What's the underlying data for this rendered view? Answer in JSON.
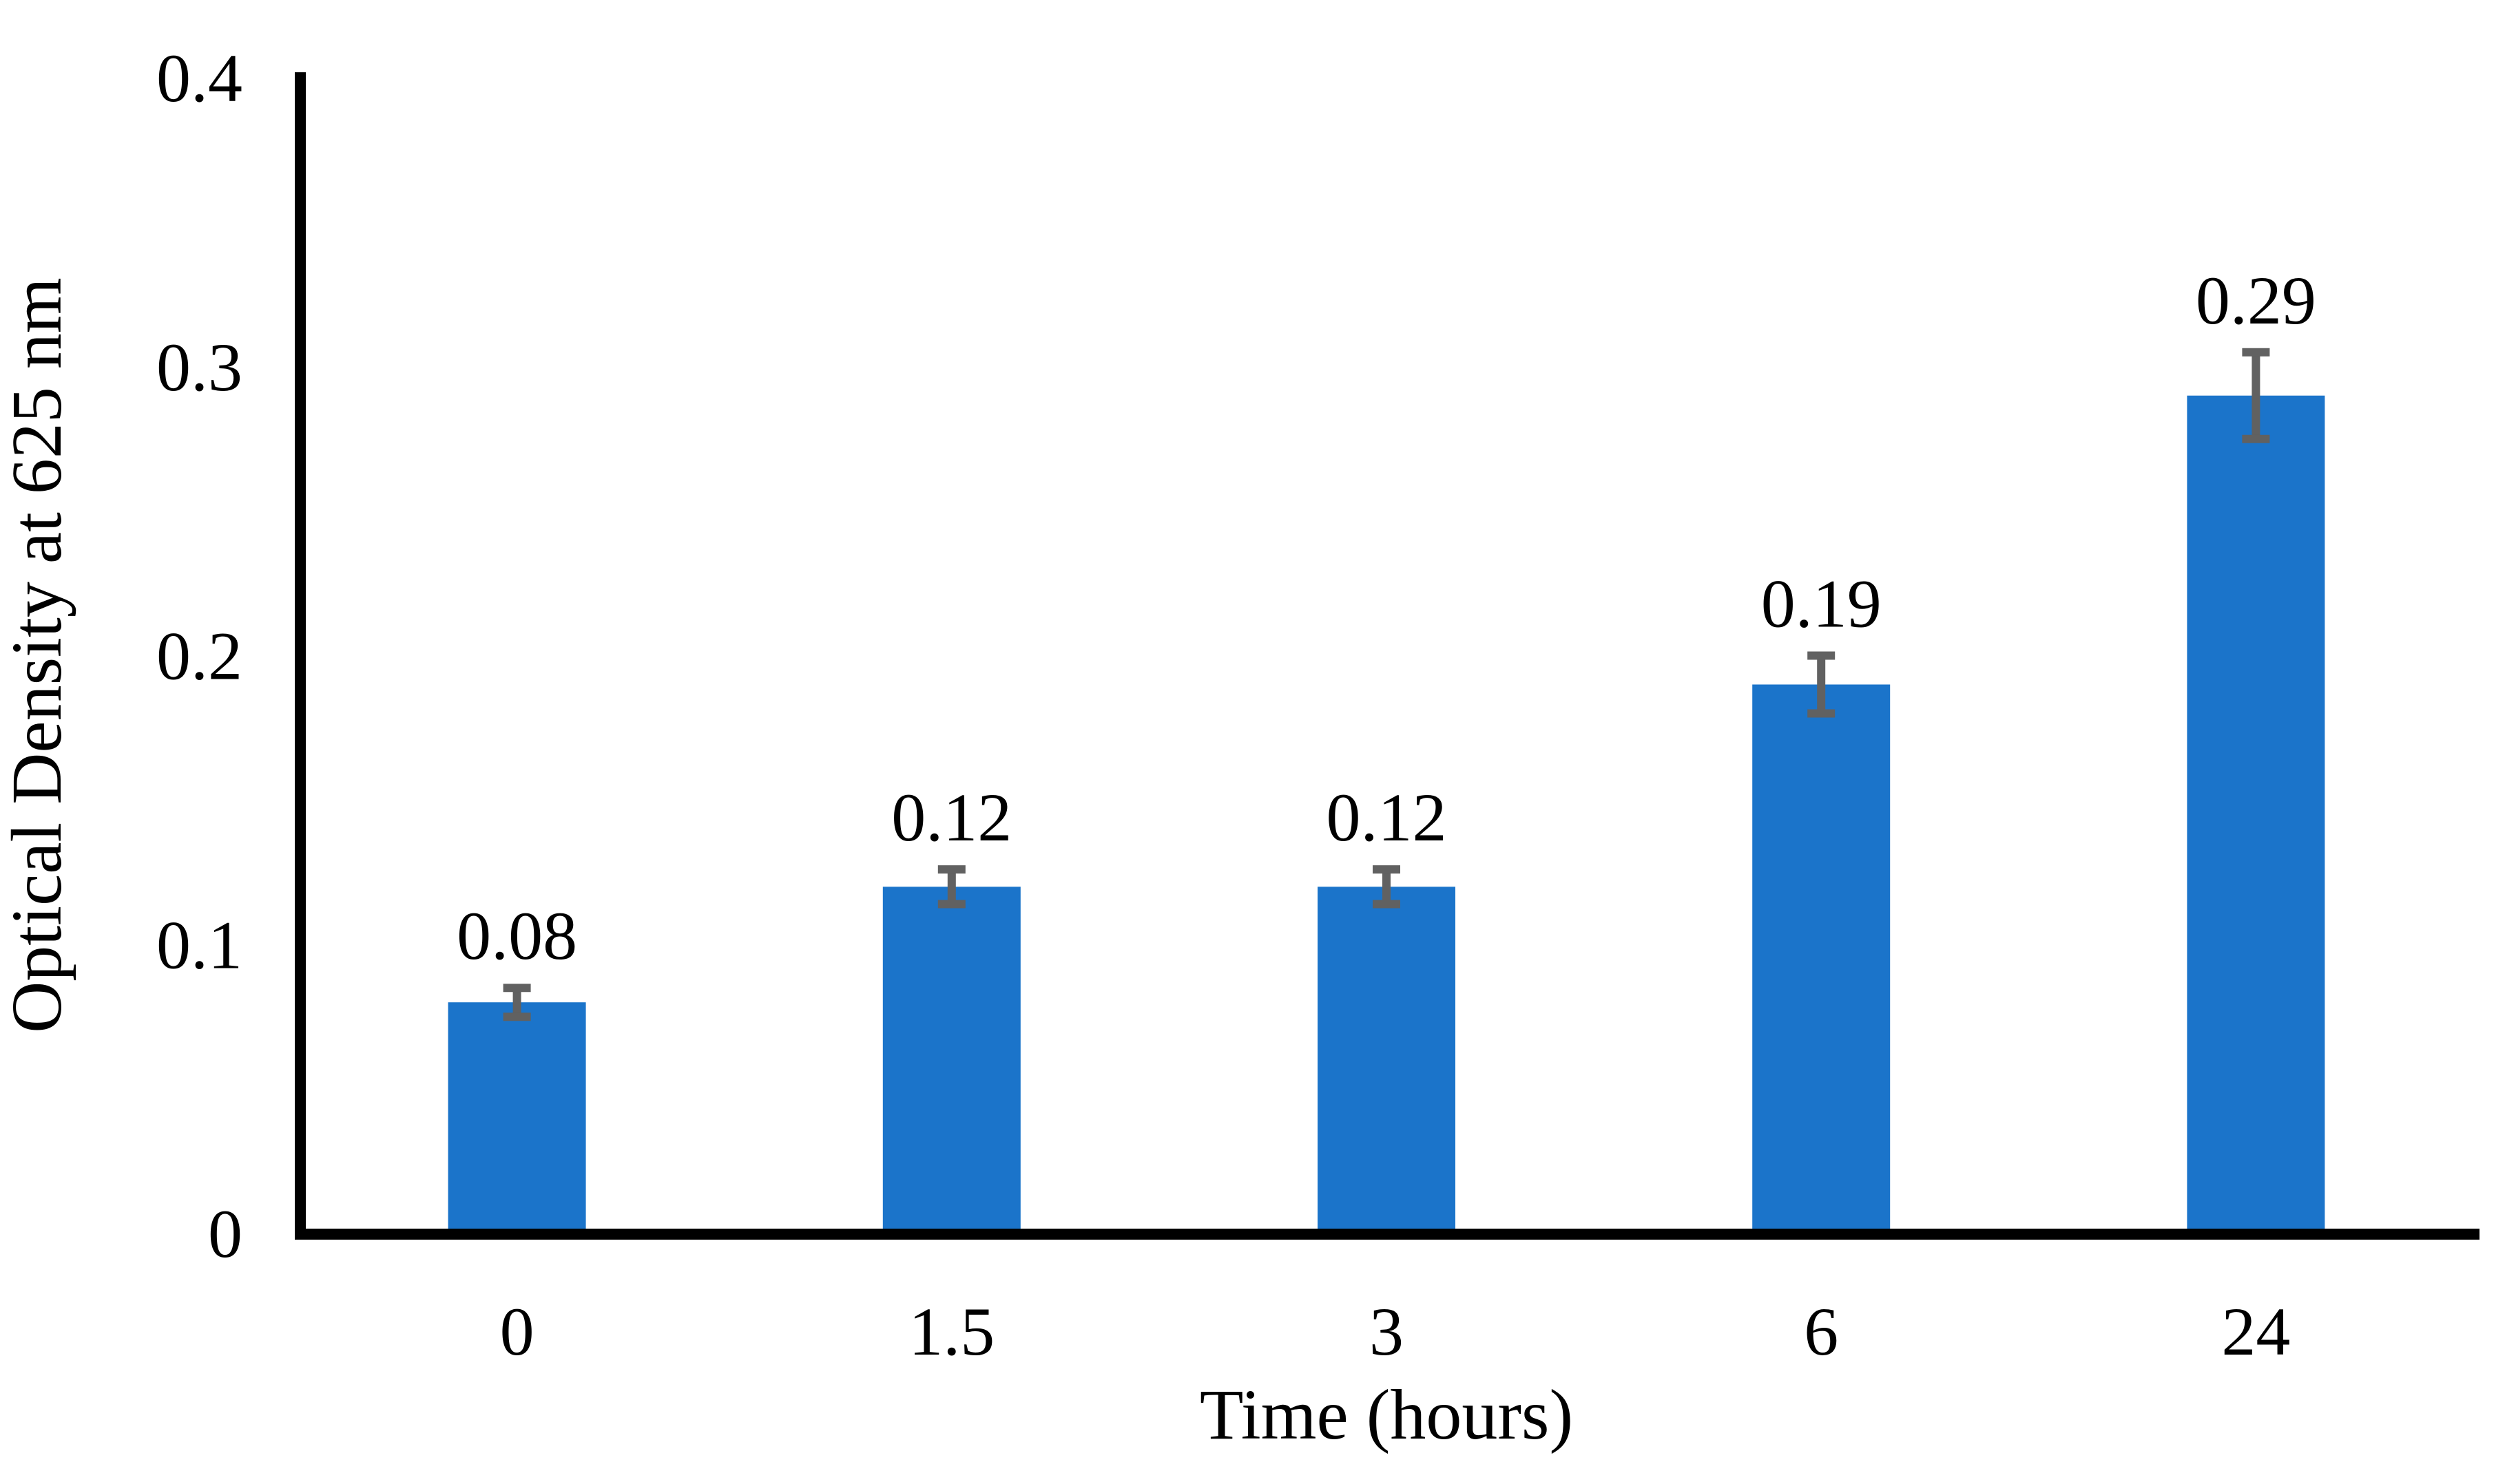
{
  "figure": {
    "background": "#FFFFFF"
  },
  "chart_data": {
    "type": "bar",
    "title": "",
    "categories": [
      "0",
      "1.5",
      "3",
      "6",
      "24"
    ],
    "values": [
      0.08,
      0.12,
      0.12,
      0.19,
      0.29
    ],
    "value_labels": [
      "0.08",
      "0.12",
      "0.12",
      "0.19",
      "0.29"
    ],
    "error_bars": [
      0.005,
      0.006,
      0.006,
      0.01,
      0.015
    ],
    "xlabel": "Time (hours)",
    "ylabel": "Optical Density at 625 nm",
    "ylim": [
      0,
      0.4
    ],
    "yticks": [
      0,
      0.1,
      0.2,
      0.3,
      0.4
    ],
    "ytick_labels": [
      "0",
      "0.1",
      "0.2",
      "0.3",
      "0.4"
    ],
    "grid": false,
    "legend": false,
    "error_bar_style": "capped-I-beam",
    "colors": {
      "bar": "#1B74CA",
      "error_bar": "#616161",
      "axis": "#000000",
      "text": "#000000"
    }
  }
}
